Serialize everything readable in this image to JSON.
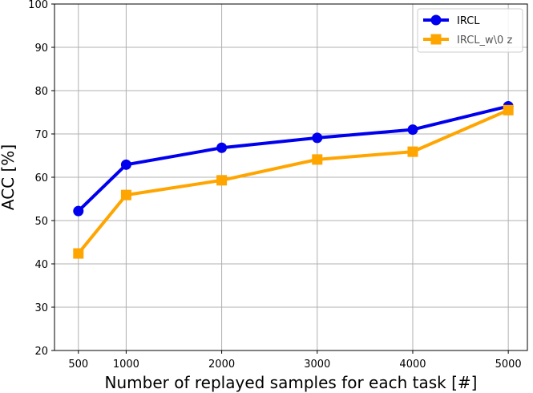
{
  "chart_data": {
    "type": "line",
    "title": "",
    "xlabel": "Number of replayed samples for each task [#]",
    "ylabel": "ACC [%]",
    "x": [
      500,
      1000,
      2000,
      3000,
      4000,
      5000
    ],
    "x_tick_labels": [
      "500",
      "1000",
      "2000",
      "3000",
      "4000",
      "5000"
    ],
    "ylim": [
      20,
      100
    ],
    "y_ticks": [
      20,
      30,
      40,
      50,
      60,
      70,
      80,
      90,
      100
    ],
    "grid": true,
    "legend_position": "top-right",
    "series": [
      {
        "name": "IRCL",
        "color": "#0000ee",
        "marker": "circle",
        "values": [
          52.2,
          62.9,
          66.8,
          69.1,
          71.0,
          76.4
        ]
      },
      {
        "name": "IRCL_w\\0 z",
        "color": "#ffa500",
        "marker": "square",
        "values": [
          42.4,
          55.9,
          59.3,
          64.1,
          65.9,
          75.5
        ]
      }
    ]
  }
}
